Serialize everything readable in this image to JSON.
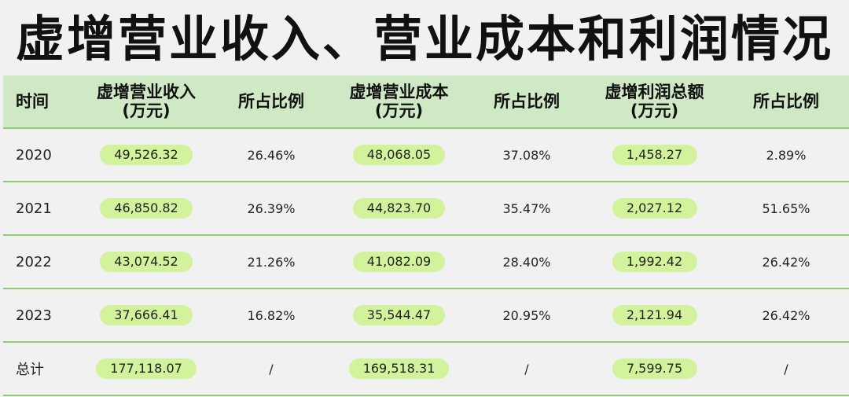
{
  "title": "虚增营业收入、营业成本和利润情况",
  "headers": {
    "time": "时间",
    "revenue": "虚增营业收入\n(万元)",
    "revenue_ratio": "所占比例",
    "cost": "虚增营业成本\n(万元)",
    "cost_ratio": "所占比例",
    "profit": "虚增利润总额\n(万元)",
    "profit_ratio": "所占比例"
  },
  "rows": [
    {
      "year": "2020",
      "revenue": "49,526.32",
      "revenue_ratio": "26.46%",
      "cost": "48,068.05",
      "cost_ratio": "37.08%",
      "profit": "1,458.27",
      "profit_ratio": "2.89%"
    },
    {
      "year": "2021",
      "revenue": "46,850.82",
      "revenue_ratio": "26.39%",
      "cost": "44,823.70",
      "cost_ratio": "35.47%",
      "profit": "2,027.12",
      "profit_ratio": "51.65%"
    },
    {
      "year": "2022",
      "revenue": "43,074.52",
      "revenue_ratio": "21.26%",
      "cost": "41,082.09",
      "cost_ratio": "28.40%",
      "profit": "1,992.42",
      "profit_ratio": "26.42%"
    },
    {
      "year": "2023",
      "revenue": "37,666.41",
      "revenue_ratio": "16.82%",
      "cost": "35,544.47",
      "cost_ratio": "20.95%",
      "profit": "2,121.94",
      "profit_ratio": "26.42%"
    },
    {
      "year": "总计",
      "revenue": "177,118.07",
      "revenue_ratio": "/",
      "cost": "169,518.31",
      "cost_ratio": "/",
      "profit": "7,599.75",
      "profit_ratio": "/"
    }
  ],
  "colors": {
    "header_bg": "#cfe9c4",
    "pill_bg": "#d3f29c",
    "row_border": "#8ccf70"
  }
}
